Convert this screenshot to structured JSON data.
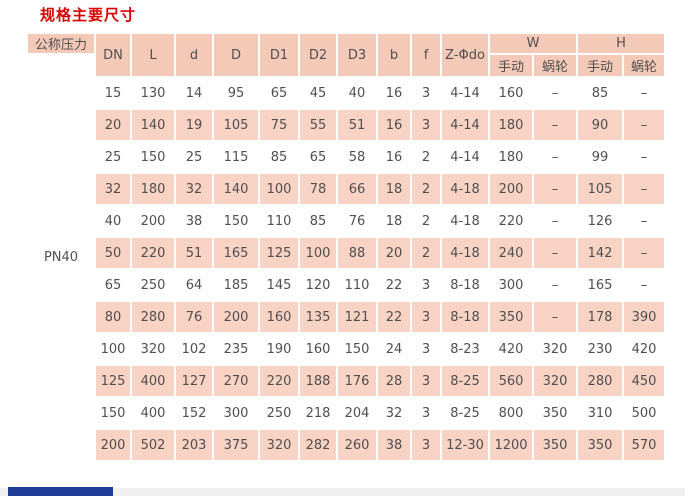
{
  "page": {
    "title": "规格主要尺寸"
  },
  "table": {
    "pressure_header": "公称压力",
    "pressure_value": "PN40",
    "column_headers": [
      "DN",
      "L",
      "d",
      "D",
      "D1",
      "D2",
      "D3",
      "b",
      "f",
      "Z-Φdo"
    ],
    "group_headers": {
      "w": "W",
      "h": "H"
    },
    "sub_headers": [
      "手动",
      "蜗轮",
      "手动",
      "蜗轮"
    ],
    "rows": [
      [
        "15",
        "130",
        "14",
        "95",
        "65",
        "45",
        "40",
        "16",
        "3",
        "4-14",
        "160",
        "–",
        "85",
        "–"
      ],
      [
        "20",
        "140",
        "19",
        "105",
        "75",
        "55",
        "51",
        "16",
        "3",
        "4-14",
        "180",
        "–",
        "90",
        "–"
      ],
      [
        "25",
        "150",
        "25",
        "115",
        "85",
        "65",
        "58",
        "16",
        "2",
        "4-14",
        "180",
        "–",
        "99",
        "–"
      ],
      [
        "32",
        "180",
        "32",
        "140",
        "100",
        "78",
        "66",
        "18",
        "2",
        "4-18",
        "200",
        "–",
        "105",
        "–"
      ],
      [
        "40",
        "200",
        "38",
        "150",
        "110",
        "85",
        "76",
        "18",
        "2",
        "4-18",
        "220",
        "–",
        "126",
        "–"
      ],
      [
        "50",
        "220",
        "51",
        "165",
        "125",
        "100",
        "88",
        "20",
        "2",
        "4-18",
        "240",
        "–",
        "142",
        "–"
      ],
      [
        "65",
        "250",
        "64",
        "185",
        "145",
        "120",
        "110",
        "22",
        "3",
        "8-18",
        "300",
        "–",
        "165",
        "–"
      ],
      [
        "80",
        "280",
        "76",
        "200",
        "160",
        "135",
        "121",
        "22",
        "3",
        "8-18",
        "350",
        "–",
        "178",
        "390"
      ],
      [
        "100",
        "320",
        "102",
        "235",
        "190",
        "160",
        "150",
        "24",
        "3",
        "8-23",
        "420",
        "320",
        "230",
        "420"
      ],
      [
        "125",
        "400",
        "127",
        "270",
        "220",
        "188",
        "176",
        "28",
        "3",
        "8-25",
        "560",
        "320",
        "280",
        "450"
      ],
      [
        "150",
        "400",
        "152",
        "300",
        "250",
        "218",
        "204",
        "32",
        "3",
        "8-25",
        "800",
        "350",
        "310",
        "500"
      ],
      [
        "200",
        "502",
        "203",
        "375",
        "320",
        "282",
        "260",
        "38",
        "3",
        "12-30",
        "1200",
        "350",
        "350",
        "570"
      ]
    ]
  },
  "colors": {
    "title_red": "#d80000",
    "header_pink": "#f5c9b8",
    "stripe_pink": "#f8d2c3",
    "active_tab_blue": "#1e3e96",
    "bottom_strip_gray": "#f0f0f0"
  }
}
